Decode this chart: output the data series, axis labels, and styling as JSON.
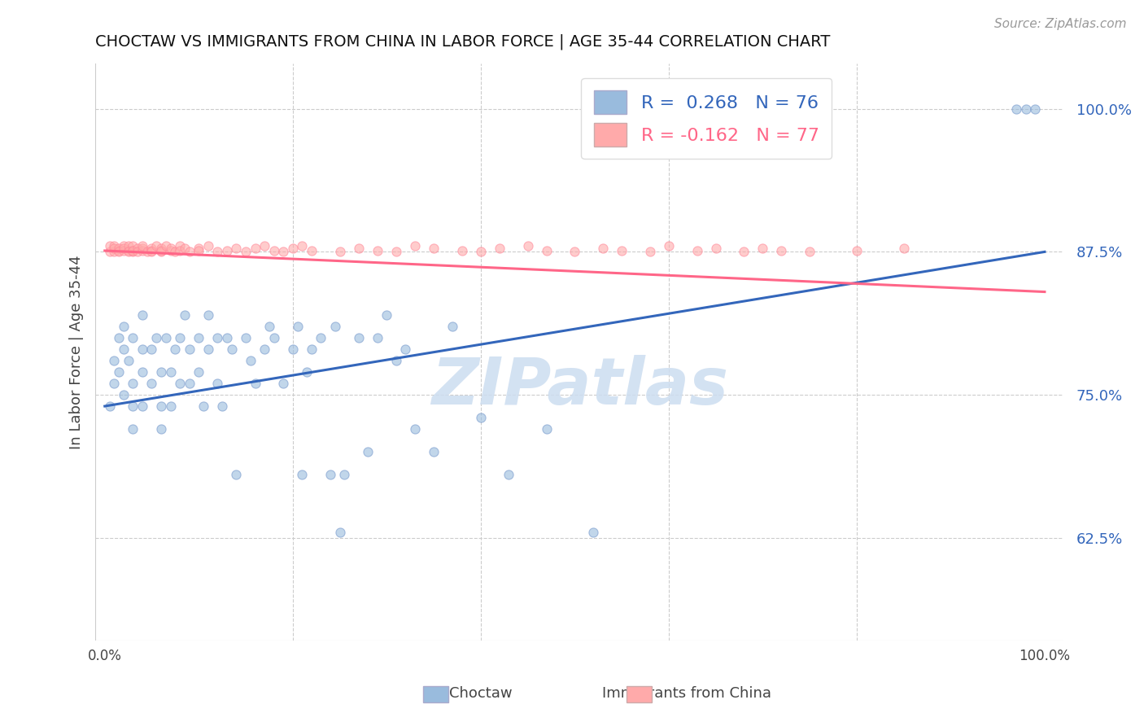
{
  "title": "CHOCTAW VS IMMIGRANTS FROM CHINA IN LABOR FORCE | AGE 35-44 CORRELATION CHART",
  "source": "Source: ZipAtlas.com",
  "ylabel": "In Labor Force | Age 35-44",
  "yticks": [
    0.625,
    0.75,
    0.875,
    1.0
  ],
  "ytick_labels": [
    "62.5%",
    "75.0%",
    "87.5%",
    "100.0%"
  ],
  "xlim": [
    -0.01,
    1.02
  ],
  "ylim": [
    0.535,
    1.04
  ],
  "watermark": "ZIPatlas",
  "blue_color": "#99BBDD",
  "pink_color": "#FFAAAA",
  "blue_line_color": "#3366BB",
  "pink_line_color": "#FF6688",
  "blue_scatter_x": [
    0.005,
    0.01,
    0.01,
    0.015,
    0.015,
    0.02,
    0.02,
    0.02,
    0.025,
    0.03,
    0.03,
    0.03,
    0.03,
    0.04,
    0.04,
    0.04,
    0.04,
    0.05,
    0.05,
    0.055,
    0.06,
    0.06,
    0.06,
    0.065,
    0.07,
    0.07,
    0.075,
    0.08,
    0.08,
    0.085,
    0.09,
    0.09,
    0.1,
    0.1,
    0.105,
    0.11,
    0.11,
    0.12,
    0.12,
    0.125,
    0.13,
    0.135,
    0.14,
    0.15,
    0.155,
    0.16,
    0.17,
    0.175,
    0.18,
    0.19,
    0.2,
    0.205,
    0.21,
    0.215,
    0.22,
    0.23,
    0.24,
    0.245,
    0.25,
    0.255,
    0.27,
    0.28,
    0.29,
    0.3,
    0.31,
    0.32,
    0.33,
    0.35,
    0.37,
    0.4,
    0.43,
    0.47,
    0.52,
    0.97,
    0.98,
    0.99
  ],
  "blue_scatter_y": [
    0.74,
    0.76,
    0.78,
    0.8,
    0.77,
    0.75,
    0.79,
    0.81,
    0.78,
    0.74,
    0.76,
    0.72,
    0.8,
    0.77,
    0.79,
    0.74,
    0.82,
    0.79,
    0.76,
    0.8,
    0.74,
    0.77,
    0.72,
    0.8,
    0.77,
    0.74,
    0.79,
    0.8,
    0.76,
    0.82,
    0.79,
    0.76,
    0.8,
    0.77,
    0.74,
    0.82,
    0.79,
    0.8,
    0.76,
    0.74,
    0.8,
    0.79,
    0.68,
    0.8,
    0.78,
    0.76,
    0.79,
    0.81,
    0.8,
    0.76,
    0.79,
    0.81,
    0.68,
    0.77,
    0.79,
    0.8,
    0.68,
    0.81,
    0.63,
    0.68,
    0.8,
    0.7,
    0.8,
    0.82,
    0.78,
    0.79,
    0.72,
    0.7,
    0.81,
    0.73,
    0.68,
    0.72,
    0.63,
    1.0,
    1.0,
    1.0
  ],
  "pink_scatter_x": [
    0.005,
    0.005,
    0.01,
    0.01,
    0.01,
    0.015,
    0.015,
    0.015,
    0.02,
    0.02,
    0.02,
    0.025,
    0.025,
    0.025,
    0.03,
    0.03,
    0.03,
    0.03,
    0.035,
    0.035,
    0.04,
    0.04,
    0.04,
    0.045,
    0.05,
    0.05,
    0.05,
    0.055,
    0.06,
    0.06,
    0.06,
    0.065,
    0.07,
    0.07,
    0.075,
    0.08,
    0.08,
    0.085,
    0.09,
    0.1,
    0.1,
    0.11,
    0.12,
    0.13,
    0.14,
    0.15,
    0.16,
    0.17,
    0.18,
    0.19,
    0.2,
    0.21,
    0.22,
    0.25,
    0.27,
    0.29,
    0.31,
    0.33,
    0.35,
    0.38,
    0.4,
    0.42,
    0.45,
    0.47,
    0.5,
    0.53,
    0.55,
    0.58,
    0.6,
    0.63,
    0.65,
    0.68,
    0.7,
    0.72,
    0.75,
    0.8,
    0.85
  ],
  "pink_scatter_y": [
    0.875,
    0.88,
    0.875,
    0.88,
    0.878,
    0.876,
    0.878,
    0.875,
    0.88,
    0.876,
    0.878,
    0.876,
    0.88,
    0.875,
    0.876,
    0.875,
    0.88,
    0.876,
    0.878,
    0.875,
    0.876,
    0.878,
    0.88,
    0.875,
    0.878,
    0.876,
    0.875,
    0.88,
    0.878,
    0.875,
    0.876,
    0.88,
    0.876,
    0.878,
    0.875,
    0.88,
    0.876,
    0.878,
    0.875,
    0.878,
    0.876,
    0.88,
    0.875,
    0.876,
    0.878,
    0.875,
    0.878,
    0.88,
    0.876,
    0.875,
    0.878,
    0.88,
    0.876,
    0.875,
    0.878,
    0.876,
    0.875,
    0.88,
    0.878,
    0.876,
    0.875,
    0.878,
    0.88,
    0.876,
    0.875,
    0.878,
    0.876,
    0.875,
    0.88,
    0.876,
    0.878,
    0.875,
    0.878,
    0.876,
    0.875,
    0.876,
    0.878
  ],
  "blue_trend_x": [
    0.0,
    1.0
  ],
  "blue_trend_y": [
    0.74,
    0.875
  ],
  "pink_trend_x": [
    0.0,
    1.0
  ],
  "pink_trend_y": [
    0.876,
    0.84
  ],
  "marker_size": 65
}
